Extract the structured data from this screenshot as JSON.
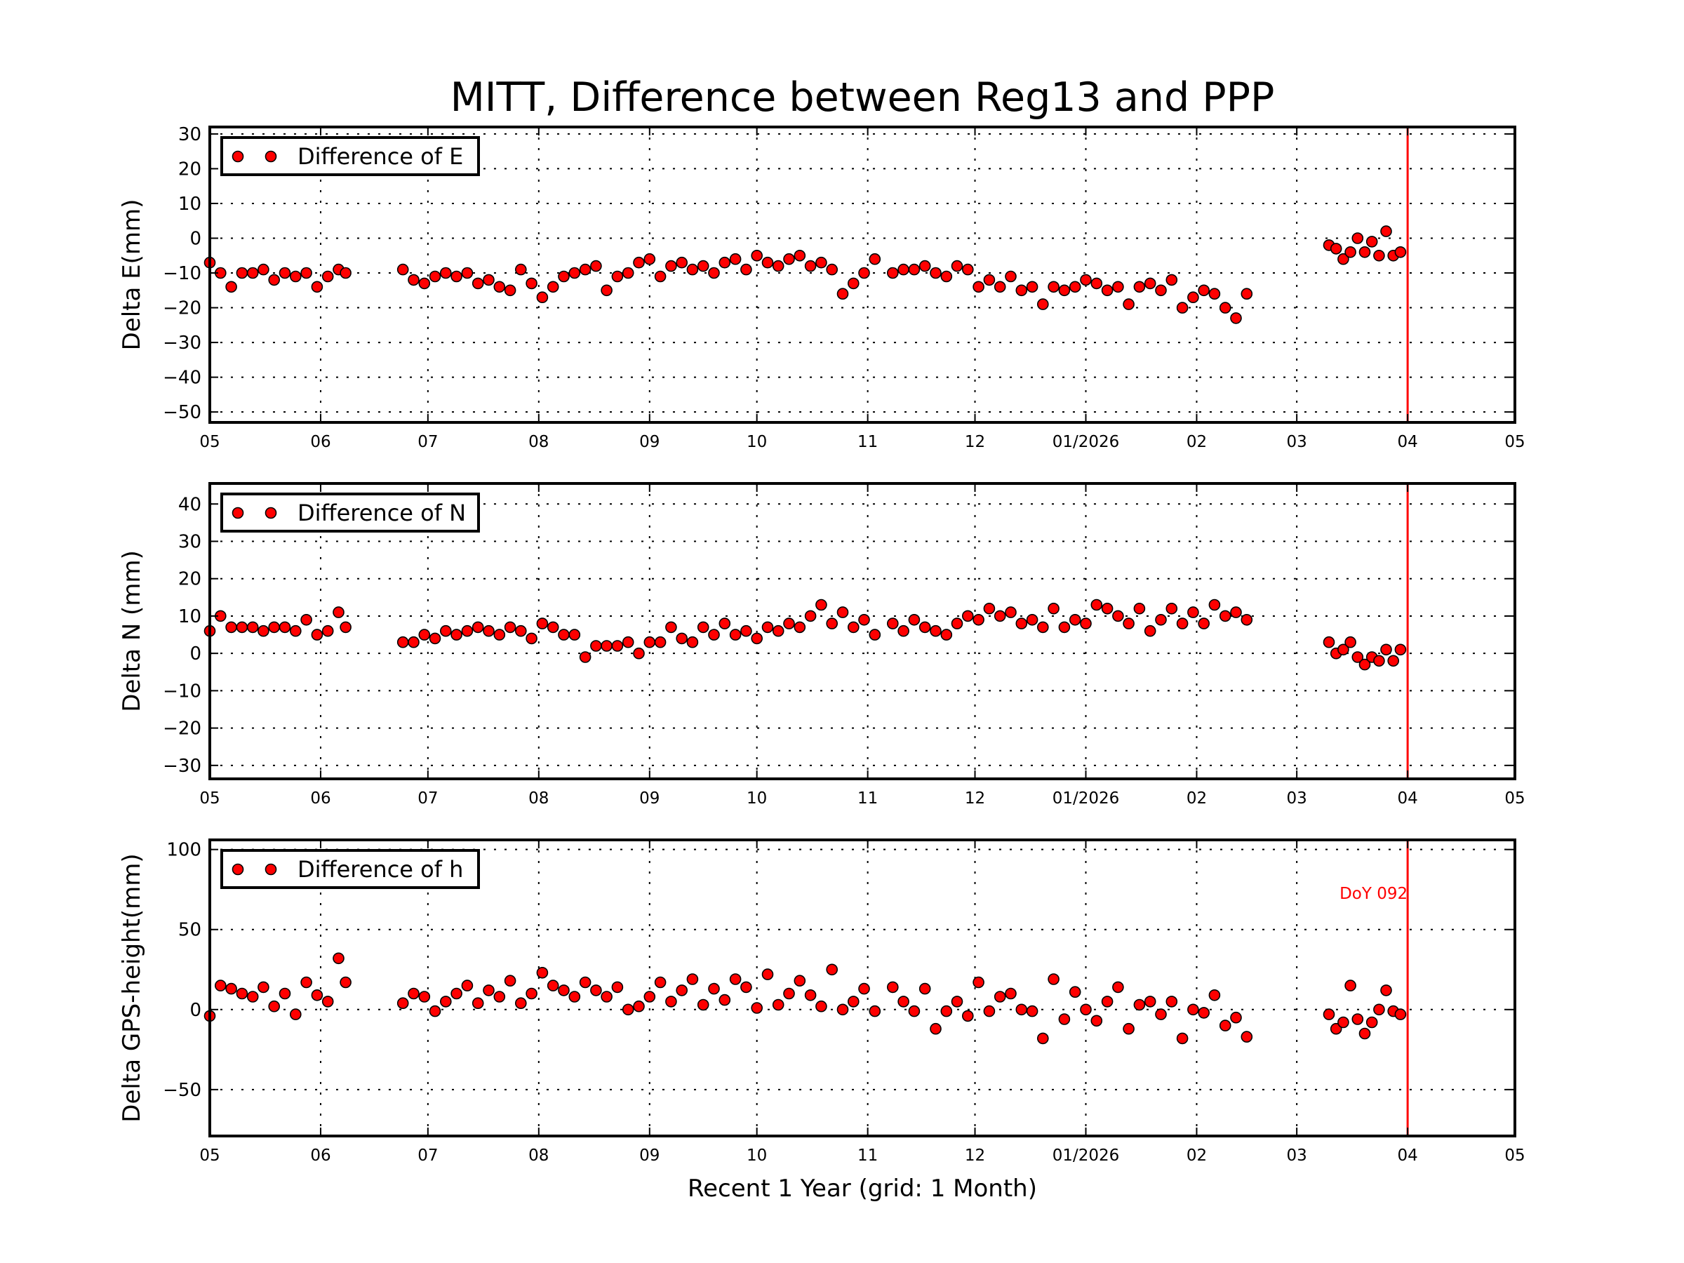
{
  "chart_data": {
    "type": "scatter",
    "title": "MITT, Difference between Reg13 and PPP",
    "xlabel": "Recent 1 Year (grid: 1 Month)",
    "x_range": [
      "2025-05-01",
      "2026-05-01"
    ],
    "xtick_labels": [
      "05",
      "06",
      "07",
      "08",
      "09",
      "10",
      "11",
      "12",
      "01/2026",
      "02",
      "03",
      "04",
      "05"
    ],
    "grid": true,
    "legend_placement": "top-left",
    "marker_color": "#ff0000",
    "marker_edge_color": "#000000",
    "vline": {
      "date": "2026-04-01",
      "label": "DoY 092",
      "color": "#ff0000"
    },
    "dates": [
      "2025-05-01",
      "2025-05-04",
      "2025-05-07",
      "2025-05-10",
      "2025-05-13",
      "2025-05-16",
      "2025-05-19",
      "2025-05-22",
      "2025-05-25",
      "2025-05-28",
      "2025-05-31",
      "2025-06-03",
      "2025-06-06",
      "2025-06-08",
      "2025-06-24",
      "2025-06-27",
      "2025-06-30",
      "2025-07-03",
      "2025-07-06",
      "2025-07-09",
      "2025-07-12",
      "2025-07-15",
      "2025-07-18",
      "2025-07-21",
      "2025-07-24",
      "2025-07-27",
      "2025-07-30",
      "2025-08-02",
      "2025-08-05",
      "2025-08-08",
      "2025-08-11",
      "2025-08-14",
      "2025-08-17",
      "2025-08-20",
      "2025-08-23",
      "2025-08-26",
      "2025-08-29",
      "2025-09-01",
      "2025-09-04",
      "2025-09-07",
      "2025-09-10",
      "2025-09-13",
      "2025-09-16",
      "2025-09-19",
      "2025-09-22",
      "2025-09-25",
      "2025-09-28",
      "2025-10-01",
      "2025-10-04",
      "2025-10-07",
      "2025-10-10",
      "2025-10-13",
      "2025-10-16",
      "2025-10-19",
      "2025-10-22",
      "2025-10-25",
      "2025-10-28",
      "2025-10-31",
      "2025-11-03",
      "2025-11-08",
      "2025-11-11",
      "2025-11-14",
      "2025-11-17",
      "2025-11-20",
      "2025-11-23",
      "2025-11-26",
      "2025-11-29",
      "2025-12-02",
      "2025-12-05",
      "2025-12-08",
      "2025-12-11",
      "2025-12-14",
      "2025-12-17",
      "2025-12-20",
      "2025-12-23",
      "2025-12-26",
      "2025-12-29",
      "2026-01-01",
      "2026-01-04",
      "2026-01-07",
      "2026-01-10",
      "2026-01-13",
      "2026-01-16",
      "2026-01-19",
      "2026-01-22",
      "2026-01-25",
      "2026-01-28",
      "2026-01-31",
      "2026-02-03",
      "2026-02-06",
      "2026-02-09",
      "2026-02-12",
      "2026-02-15",
      "2026-03-10",
      "2026-03-12",
      "2026-03-14",
      "2026-03-16",
      "2026-03-18",
      "2026-03-20",
      "2026-03-22",
      "2026-03-24",
      "2026-03-26",
      "2026-03-28",
      "2026-03-30"
    ],
    "panels": [
      {
        "ylabel": "Delta E(mm)",
        "legend": "Difference of E",
        "ylim": [
          -53,
          32
        ],
        "yticks": [
          30,
          20,
          10,
          0,
          -10,
          -20,
          -30,
          -40,
          -50
        ],
        "ytick_labels": [
          "30",
          "20",
          "10",
          "0",
          "−10",
          "−20",
          "−30",
          "−40",
          "−50"
        ],
        "values": [
          -7,
          -10,
          -14,
          -10,
          -10,
          -9,
          -12,
          -10,
          -11,
          -10,
          -14,
          -11,
          -9,
          -10,
          -9,
          -12,
          -13,
          -11,
          -10,
          -11,
          -10,
          -13,
          -12,
          -14,
          -15,
          -9,
          -13,
          -17,
          -14,
          -11,
          -10,
          -9,
          -8,
          -15,
          -11,
          -10,
          -7,
          -6,
          -11,
          -8,
          -7,
          -9,
          -8,
          -10,
          -7,
          -6,
          -9,
          -5,
          -7,
          -8,
          -6,
          -5,
          -8,
          -7,
          -9,
          -16,
          -13,
          -10,
          -6,
          -10,
          -9,
          -9,
          -8,
          -10,
          -11,
          -8,
          -9,
          -14,
          -12,
          -14,
          -11,
          -15,
          -14,
          -19,
          -14,
          -15,
          -14,
          -12,
          -13,
          -15,
          -14,
          -19,
          -14,
          -13,
          -15,
          -12,
          -20,
          -17,
          -15,
          -16,
          -20,
          -23,
          -16,
          -2,
          -3,
          -6,
          -4,
          0,
          -4,
          -1,
          -5,
          2,
          -5,
          -4
        ]
      },
      {
        "ylabel": "Delta N (mm)",
        "legend": "Difference of N",
        "ylim": [
          -33.6,
          45.5
        ],
        "yticks": [
          40,
          30,
          20,
          10,
          0,
          -10,
          -20,
          -30
        ],
        "ytick_labels": [
          "40",
          "30",
          "20",
          "10",
          "0",
          "−10",
          "−20",
          "−30"
        ],
        "values": [
          6,
          10,
          7,
          7,
          7,
          6,
          7,
          7,
          6,
          9,
          5,
          6,
          11,
          7,
          3,
          3,
          5,
          4,
          6,
          5,
          6,
          7,
          6,
          5,
          7,
          6,
          4,
          8,
          7,
          5,
          5,
          -1,
          2,
          2,
          2,
          3,
          0,
          3,
          3,
          7,
          4,
          3,
          7,
          5,
          8,
          5,
          6,
          4,
          7,
          6,
          8,
          7,
          10,
          13,
          8,
          11,
          7,
          9,
          5,
          8,
          6,
          9,
          7,
          6,
          5,
          8,
          10,
          9,
          12,
          10,
          11,
          8,
          9,
          7,
          12,
          7,
          9,
          8,
          13,
          12,
          10,
          8,
          12,
          6,
          9,
          12,
          8,
          11,
          8,
          13,
          10,
          11,
          9,
          3,
          0,
          1,
          3,
          -1,
          -3,
          -1,
          -2,
          1,
          -2,
          1
        ]
      },
      {
        "ylabel": "Delta GPS-height(mm)",
        "legend": "Difference of h",
        "ylim": [
          -79,
          106
        ],
        "yticks": [
          100,
          50,
          0,
          -50
        ],
        "ytick_labels": [
          "100",
          "50",
          "0",
          "−50"
        ],
        "values": [
          -4,
          15,
          13,
          10,
          8,
          14,
          2,
          10,
          -3,
          17,
          9,
          5,
          32,
          17,
          4,
          10,
          8,
          -1,
          5,
          10,
          15,
          4,
          12,
          8,
          18,
          4,
          10,
          23,
          15,
          12,
          8,
          17,
          12,
          8,
          14,
          0,
          2,
          8,
          17,
          5,
          12,
          19,
          3,
          13,
          6,
          19,
          14,
          1,
          22,
          3,
          10,
          18,
          9,
          2,
          25,
          0,
          5,
          13,
          -1,
          14,
          5,
          -1,
          13,
          -12,
          -1,
          5,
          -4,
          17,
          -1,
          8,
          10,
          0,
          -1,
          -18,
          19,
          -6,
          11,
          0,
          -7,
          5,
          14,
          -12,
          3,
          5,
          -3,
          5,
          -18,
          0,
          -2,
          9,
          -10,
          -5,
          -17,
          -3,
          -12,
          -8,
          15,
          -6,
          -15,
          -8,
          0,
          12,
          -1,
          -3
        ]
      }
    ]
  }
}
